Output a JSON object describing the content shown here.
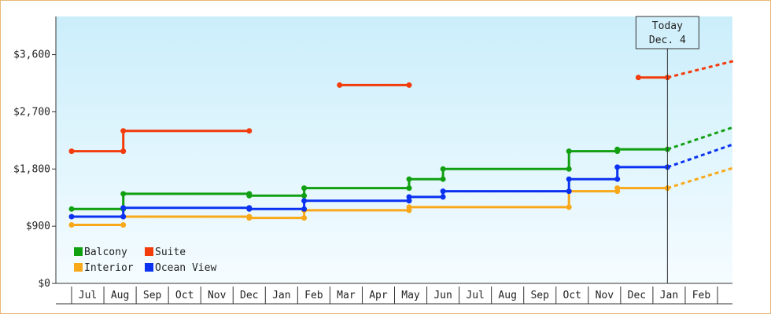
{
  "chart_data": {
    "type": "line",
    "step": true,
    "ylim": [
      0,
      4200
    ],
    "y_ticks": [
      {
        "value": 0,
        "label": "$0"
      },
      {
        "value": 900,
        "label": "$900"
      },
      {
        "value": 1800,
        "label": "$1,800"
      },
      {
        "value": 2700,
        "label": "$2,700"
      },
      {
        "value": 3600,
        "label": "$3,600"
      }
    ],
    "x_months": [
      "Jul",
      "Aug",
      "Sep",
      "Oct",
      "Nov",
      "Dec",
      "Jan",
      "Feb",
      "Mar",
      "Apr",
      "May",
      "Jun",
      "Jul",
      "Aug",
      "Sep",
      "Oct",
      "Nov",
      "Dec",
      "Jan",
      "Feb"
    ],
    "today": {
      "line1": "Today",
      "line2": "Dec. 4",
      "x": 17.95
    },
    "xlim": [
      -0.5,
      20.0
    ],
    "legend_position": "bottom-left",
    "series": [
      {
        "name": "Balcony",
        "color": "#11a011",
        "segments": [
          [
            [
              -0.5,
              1170
            ],
            [
              1.1,
              1170
            ],
            [
              1.1,
              1410
            ],
            [
              5.0,
              1410
            ],
            [
              5.0,
              1380
            ],
            [
              6.7,
              1380
            ],
            [
              6.7,
              1500
            ],
            [
              9.95,
              1500
            ],
            [
              9.95,
              1640
            ],
            [
              11.0,
              1640
            ],
            [
              11.0,
              1800
            ],
            [
              14.9,
              1800
            ],
            [
              14.9,
              2080
            ],
            [
              16.4,
              2080
            ],
            [
              16.4,
              2110
            ],
            [
              17.95,
              2110
            ]
          ]
        ],
        "projection": [
          [
            17.95,
            2110
          ],
          [
            20.0,
            2460
          ]
        ]
      },
      {
        "name": "Suite",
        "color": "#f23c0c",
        "segments": [
          [
            [
              -0.5,
              2080
            ],
            [
              1.1,
              2080
            ],
            [
              1.1,
              2400
            ],
            [
              5.0,
              2400
            ]
          ],
          [
            [
              7.8,
              3120
            ],
            [
              9.95,
              3120
            ]
          ],
          [
            [
              17.05,
              3240
            ],
            [
              17.95,
              3240
            ]
          ]
        ],
        "projection": [
          [
            17.95,
            3240
          ],
          [
            20.0,
            3500
          ]
        ]
      },
      {
        "name": "Interior",
        "color": "#f8a818",
        "segments": [
          [
            [
              -0.5,
              920
            ],
            [
              1.1,
              920
            ]
          ],
          [
            [
              1.1,
              1050
            ],
            [
              5.0,
              1050
            ],
            [
              5.0,
              1030
            ],
            [
              6.7,
              1030
            ],
            [
              6.7,
              1150
            ],
            [
              9.95,
              1150
            ],
            [
              9.95,
              1200
            ],
            [
              14.9,
              1200
            ],
            [
              14.9,
              1450
            ],
            [
              16.4,
              1450
            ],
            [
              16.4,
              1500
            ],
            [
              17.95,
              1500
            ]
          ]
        ],
        "projection": [
          [
            17.95,
            1500
          ],
          [
            20.0,
            1820
          ]
        ]
      },
      {
        "name": "Ocean View",
        "color": "#0a32f0",
        "segments": [
          [
            [
              -0.5,
              1050
            ],
            [
              1.1,
              1050
            ],
            [
              1.1,
              1190
            ],
            [
              5.0,
              1190
            ],
            [
              5.0,
              1170
            ],
            [
              6.7,
              1170
            ],
            [
              6.7,
              1300
            ],
            [
              9.95,
              1300
            ],
            [
              9.95,
              1360
            ],
            [
              11.0,
              1360
            ],
            [
              11.0,
              1450
            ],
            [
              14.9,
              1450
            ],
            [
              14.9,
              1640
            ],
            [
              16.4,
              1640
            ],
            [
              16.4,
              1830
            ],
            [
              17.95,
              1830
            ]
          ]
        ],
        "projection": [
          [
            17.95,
            1830
          ],
          [
            20.0,
            2190
          ]
        ]
      }
    ]
  }
}
